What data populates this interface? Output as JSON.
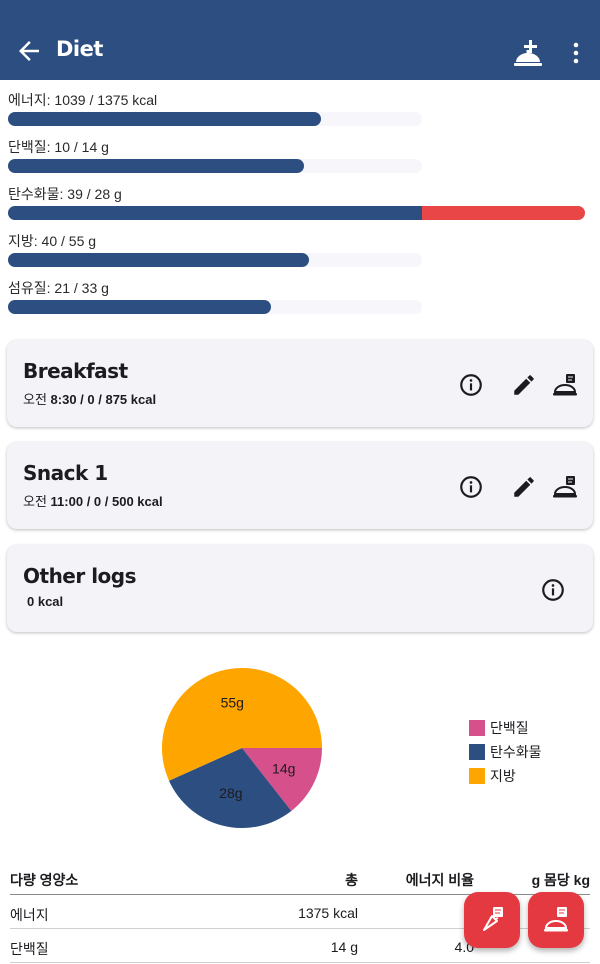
{
  "appbar": {
    "title": "Diet",
    "icons": [
      "back-arrow-icon",
      "add-meal-icon",
      "more-vert-icon"
    ]
  },
  "nutrients": [
    {
      "label": "에너지: 1039 / 1375 kcal",
      "value": 1039,
      "goal": 1375
    },
    {
      "label": "단백질: 10 / 14 g",
      "value": 10,
      "goal": 14
    },
    {
      "label": "탄수화물: 39 / 28 g",
      "value": 39,
      "goal": 28
    },
    {
      "label": "지방: 40 / 55 g",
      "value": 40,
      "goal": 55
    },
    {
      "label": "섬유질: 21 / 33 g",
      "value": 21,
      "goal": 33
    }
  ],
  "meals": [
    {
      "name": "Breakfast",
      "time_prefix": "오전 ",
      "time": "8:30 / ",
      "kcal": " 0 / 875 kcal"
    },
    {
      "name": "Snack 1",
      "time_prefix": "오전 ",
      "time": "11:00 / ",
      "kcal": " 0 / 500 kcal"
    }
  ],
  "other_logs": {
    "name": "Other logs",
    "kcal": "0 kcal"
  },
  "chart_data": {
    "type": "pie",
    "categories": [
      "단백질",
      "탄수화물",
      "지방"
    ],
    "values": [
      14,
      28,
      55
    ],
    "labels": [
      "14g",
      "28g",
      "55g"
    ],
    "colors": [
      "#d6508b",
      "#2c4e80",
      "#ffa500"
    ],
    "legend": "right"
  },
  "table": {
    "headers": [
      "다량 영양소",
      "총",
      "에너지 비율",
      "g 몸당 kg"
    ],
    "rows": [
      [
        "에너지",
        "1375 kcal",
        "",
        ""
      ],
      [
        "단백질",
        "14 g",
        "4.0",
        ""
      ]
    ]
  },
  "colors": {
    "primary": "#2c4e80",
    "accent": "#e53941",
    "over": "#e94747"
  }
}
